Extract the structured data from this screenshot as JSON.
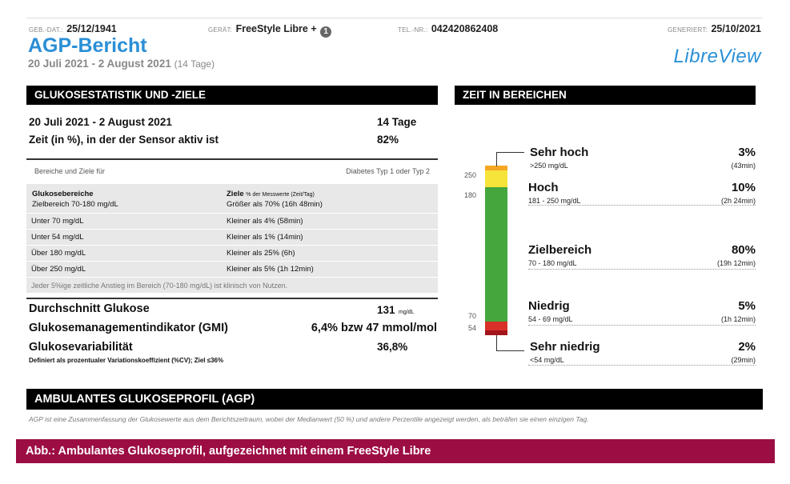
{
  "header": {
    "dob_label": "GEB.-DAT.:",
    "dob_value": "25/12/1941",
    "device_label": "GERÄT:",
    "device_value": "FreeStyle Libre +",
    "device_badge": "1",
    "phone_label": "TEL.-NR.:",
    "phone_value": "042420862408",
    "generated_label": "GENERIERT:",
    "generated_value": "25/10/2021",
    "title": "AGP-Bericht",
    "date_range": "20 Juli 2021 - 2 August 2021",
    "date_days": "(14 Tage)",
    "logo": "LibreView"
  },
  "stats": {
    "section_title": "GLUKOSESTATISTIK UND -ZIELE",
    "period": "20 Juli 2021 - 2 August 2021",
    "period_days": "14 Tage",
    "sensor_label": "Zeit (in %), in der der Sensor aktiv ist",
    "sensor_value": "82%",
    "targets_header_left": "Bereiche und Ziele für",
    "targets_header_right": "Diabetes Typ 1 oder Typ 2",
    "col1_title": "Glukosebereiche",
    "col2_title": "Ziele",
    "col2_title_note": "% der Messwerte (Zeit/Tag)",
    "rows": [
      {
        "range": "Zielbereich 70-180 mg/dL",
        "goal": "Größer als 70% (16h 48min)"
      },
      {
        "range": "Unter 70 mg/dL",
        "goal": "Kleiner als 4% (58min)"
      },
      {
        "range": "Unter 54 mg/dL",
        "goal": "Kleiner als 1% (14min)"
      },
      {
        "range": "Über 180 mg/dL",
        "goal": "Kleiner als 25% (6h)"
      },
      {
        "range": "Über 250 mg/dL",
        "goal": "Kleiner als 5% (1h 12min)"
      }
    ],
    "footnote": "Jeder 5%ige zeitliche Anstieg im Bereich (70-180 mg/dL) ist klinisch von Nutzen.",
    "avg_label": "Durchschnitt Glukose",
    "avg_value": "131",
    "avg_unit": "mg/dL",
    "gmi_label": "Glukosemanagementindikator (GMI)",
    "gmi_value": "6,4% bzw 47 mmol/mol",
    "var_label": "Glukosevariabilität",
    "var_value": "36,8%",
    "var_note": "Definiert als prozentualer Variationskoeffizient (%CV); Ziel ≤36%"
  },
  "tir": {
    "section_title": "ZEIT IN BEREICHEN",
    "ticks": [
      "250",
      "180",
      "70",
      "54"
    ],
    "bar_segments": [
      {
        "color": "#f5a623",
        "share": 3
      },
      {
        "color": "#f7e43a",
        "share": 10
      },
      {
        "color": "#45a63d",
        "share": 80
      },
      {
        "color": "#d9302a",
        "share": 5
      },
      {
        "color": "#a3141c",
        "share": 2
      }
    ],
    "ranges": [
      {
        "name": "Sehr hoch",
        "sub": ">250 mg/dL",
        "pct": "3%",
        "dur": "(43min)"
      },
      {
        "name": "Hoch",
        "sub": "181 - 250 mg/dL",
        "pct": "10%",
        "dur": "(2h 24min)"
      },
      {
        "name": "Zielbereich",
        "sub": "70 - 180 mg/dL",
        "pct": "80%",
        "dur": "(19h 12min)"
      },
      {
        "name": "Niedrig",
        "sub": "54 - 69 mg/dL",
        "pct": "5%",
        "dur": "(1h 12min)"
      },
      {
        "name": "Sehr niedrig",
        "sub": "<54 mg/dL",
        "pct": "2%",
        "dur": "(29min)"
      }
    ]
  },
  "agp": {
    "section_title": "AMBULANTES GLUKOSEPROFIL (AGP)",
    "description": "AGP ist eine Zusammenfassung der Glukosewerte aus dem Berichtszeitraum, wobei der Medianwert (50 %) und andere Perzentile angezeigt werden, als beträfen sie einen einzigen Tag."
  },
  "caption": "Abb.: Ambulantes Glukoseprofil, aufgezeichnet mit einem FreeStyle Libre"
}
